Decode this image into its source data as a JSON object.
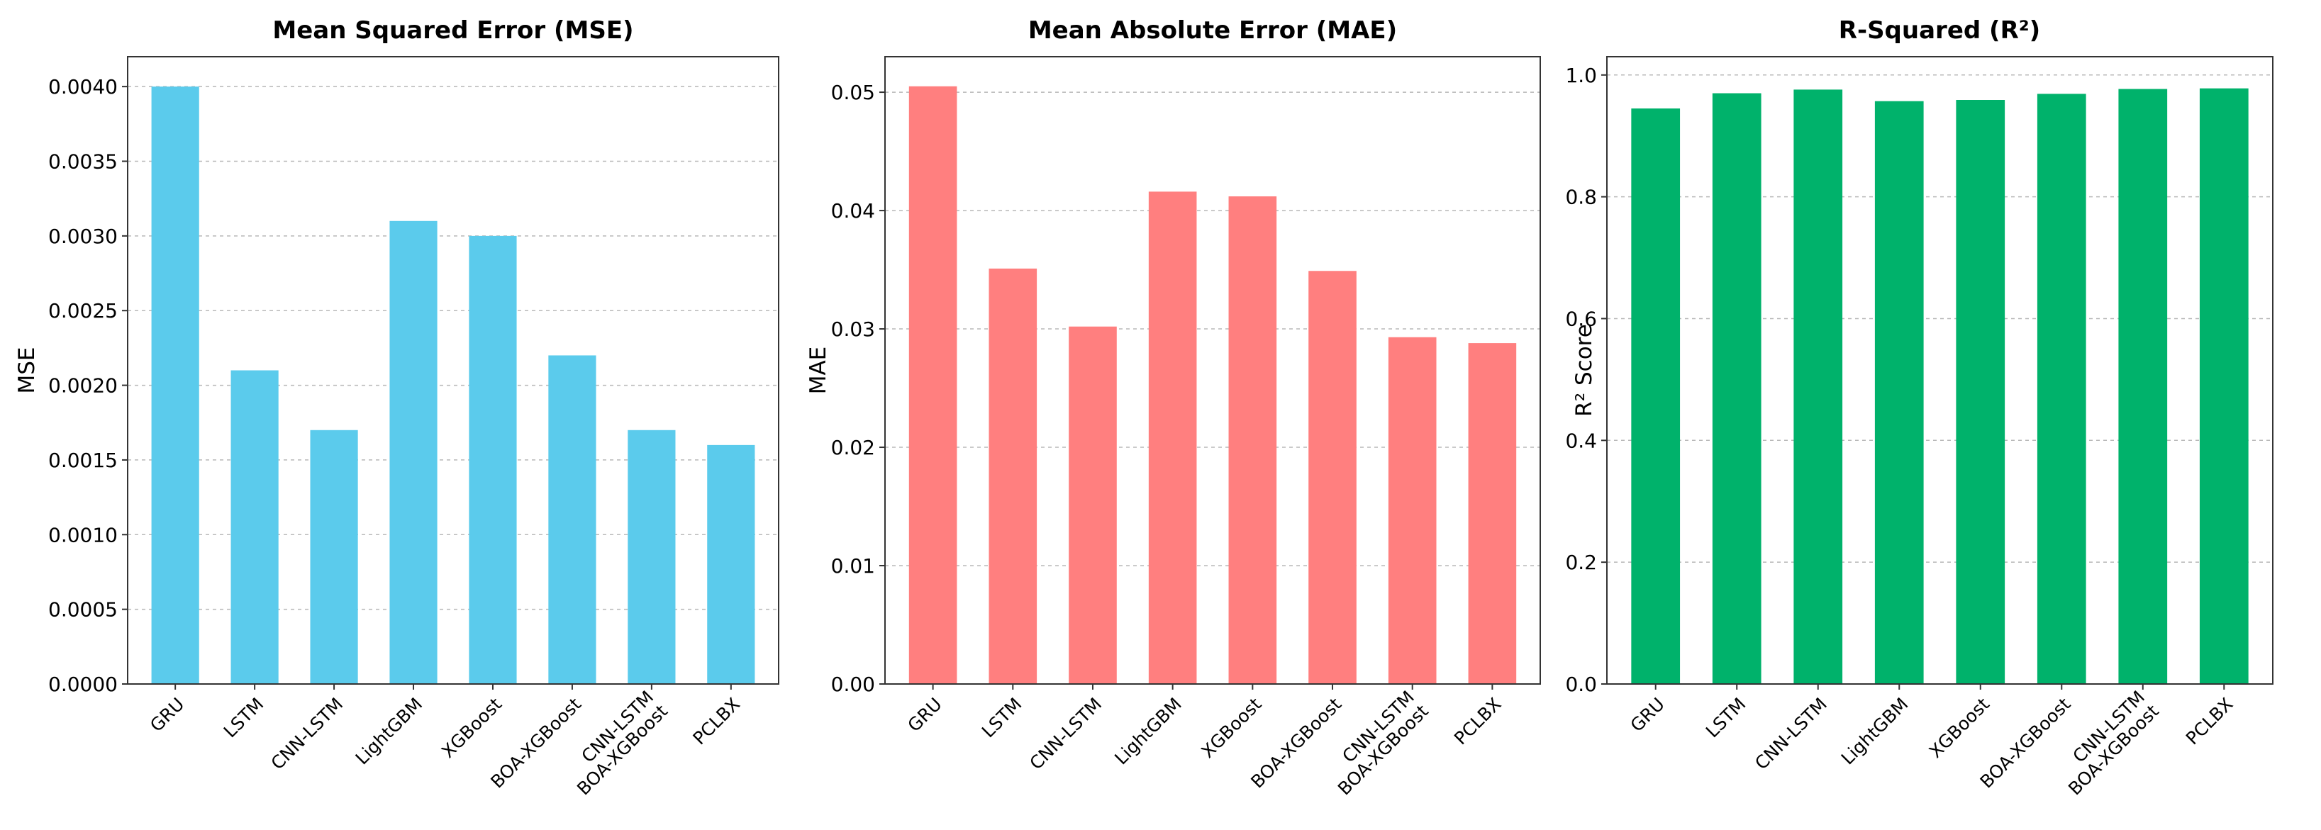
{
  "chart_data": [
    {
      "type": "bar",
      "title": "Mean Squared Error (MSE)",
      "xlabel": "",
      "ylabel": "MSE",
      "categories": [
        "GRU",
        "LSTM",
        "CNN-LSTM",
        "LightGBM",
        "XGBoost",
        "BOA-XGBoost",
        "CNN-LSTM\nBOA-XGBoost",
        "PCLBX"
      ],
      "values": [
        0.004,
        0.0021,
        0.0017,
        0.0031,
        0.003,
        0.0022,
        0.0017,
        0.0016
      ],
      "ylim": [
        0,
        0.0042
      ],
      "yticks": [
        "0.0000",
        "0.0005",
        "0.0010",
        "0.0015",
        "0.0020",
        "0.0025",
        "0.0030",
        "0.0035",
        "0.0040"
      ],
      "color": "#5bcbec",
      "grid": "y-dashed",
      "legend": "none"
    },
    {
      "type": "bar",
      "title": "Mean Absolute Error (MAE)",
      "xlabel": "",
      "ylabel": "MAE",
      "categories": [
        "GRU",
        "LSTM",
        "CNN-LSTM",
        "LightGBM",
        "XGBoost",
        "BOA-XGBoost",
        "CNN-LSTM\nBOA-XGBoost",
        "PCLBX"
      ],
      "values": [
        0.0505,
        0.0351,
        0.0302,
        0.0416,
        0.0412,
        0.0349,
        0.0293,
        0.0288
      ],
      "ylim": [
        0,
        0.053
      ],
      "yticks": [
        "0.00",
        "0.01",
        "0.02",
        "0.03",
        "0.04",
        "0.05"
      ],
      "color": "#ff7f7f",
      "grid": "y-dashed",
      "legend": "none"
    },
    {
      "type": "bar",
      "title": "R-Squared (R²)",
      "xlabel": "",
      "ylabel": "R² Score",
      "categories": [
        "GRU",
        "LSTM",
        "CNN-LSTM",
        "LightGBM",
        "XGBoost",
        "BOA-XGBoost",
        "CNN-LSTM\nBOA-XGBoost",
        "PCLBX"
      ],
      "values": [
        0.945,
        0.97,
        0.976,
        0.957,
        0.959,
        0.969,
        0.977,
        0.978
      ],
      "ylim": [
        0,
        1.03
      ],
      "yticks": [
        "0.0",
        "0.2",
        "0.4",
        "0.6",
        "0.8",
        "1.0"
      ],
      "color": "#00b26b",
      "grid": "y-dashed",
      "legend": "none"
    }
  ]
}
